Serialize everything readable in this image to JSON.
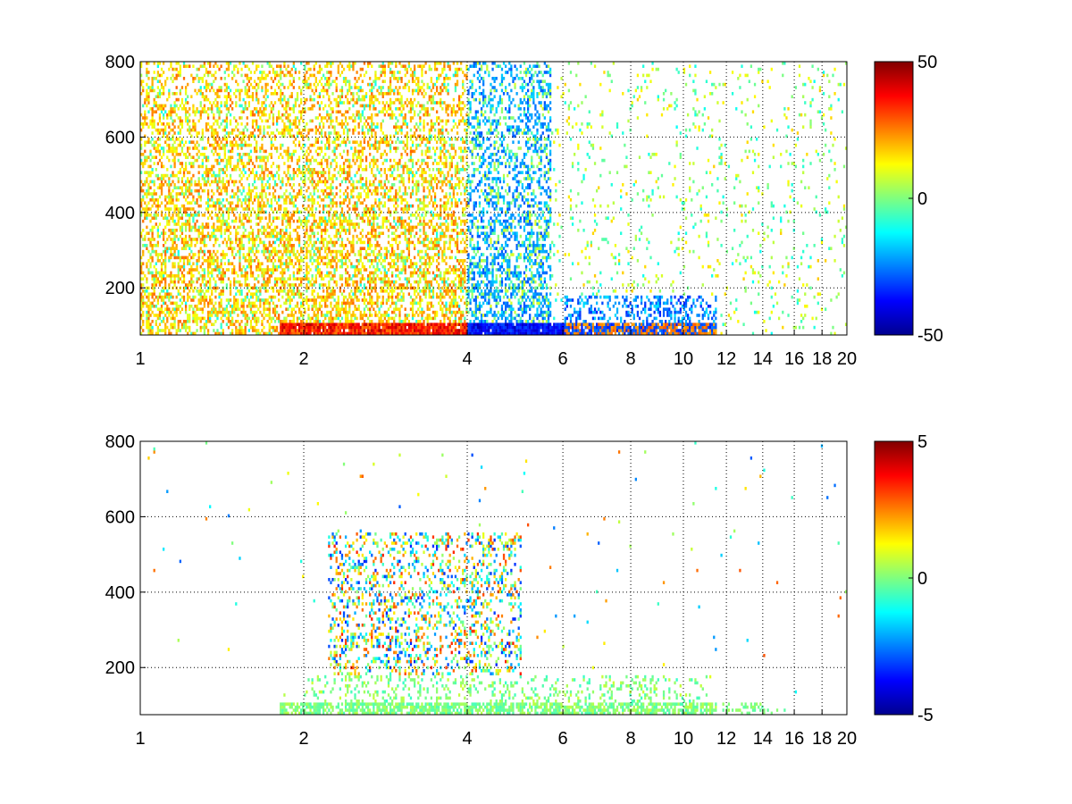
{
  "chart_data": [
    {
      "type": "heatmap",
      "title": "",
      "xlabel": "",
      "ylabel": "",
      "xlim": [
        1,
        20
      ],
      "ylim": [
        75,
        800
      ],
      "xscale": "log",
      "grid": true,
      "x_tick_labels": [
        "1",
        "2",
        "4",
        "6",
        "8",
        "10",
        "12",
        "14",
        "16",
        "18",
        "20"
      ],
      "x_ticks": [
        1,
        2,
        4,
        6,
        8,
        10,
        12,
        14,
        16,
        18,
        20
      ],
      "y_tick_labels": [
        "200",
        "400",
        "600",
        "800"
      ],
      "y_ticks": [
        200,
        400,
        600,
        800
      ],
      "colorbar": {
        "min": -50,
        "max": 50,
        "tick_labels": [
          "50",
          "0",
          "-50"
        ],
        "ticks": [
          50,
          0,
          -50
        ],
        "colormap": "jet"
      },
      "description_of_cells": "sparse scatter of values; strong band along y~100 from x=2 to x=10 (red ~+40 near x=2-4, blue ~-40 near x=4-6 and x=8-10); dense yellow/cyan region x=1.5-5.5 up to y=800; sparse green/cyan cells at x>6"
    },
    {
      "type": "heatmap",
      "title": "",
      "xlabel": "",
      "ylabel": "",
      "xlim": [
        1,
        20
      ],
      "ylim": [
        75,
        800
      ],
      "xscale": "log",
      "grid": true,
      "x_tick_labels": [
        "1",
        "2",
        "4",
        "6",
        "8",
        "10",
        "12",
        "14",
        "16",
        "18",
        "20"
      ],
      "x_ticks": [
        1,
        2,
        4,
        6,
        8,
        10,
        12,
        14,
        16,
        18,
        20
      ],
      "y_tick_labels": [
        "200",
        "400",
        "600",
        "800"
      ],
      "y_ticks": [
        200,
        400,
        600,
        800
      ],
      "colorbar": {
        "min": -5,
        "max": 5,
        "tick_labels": [
          "5",
          "0",
          "-5"
        ],
        "ticks": [
          5,
          0,
          -5
        ],
        "colormap": "jet"
      },
      "description_of_cells": "mostly empty; green band near y~100 from x=2 to x=11; scattered values x=2-5 between y=100 and y=550; isolated points elsewhere"
    }
  ]
}
